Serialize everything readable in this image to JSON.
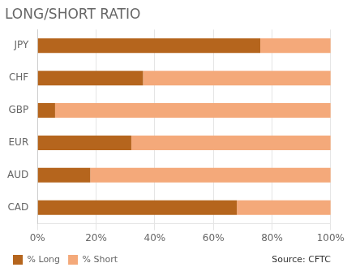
{
  "chart_data": {
    "type": "bar",
    "orientation": "horizontal",
    "stacked": true,
    "title": "LONG/SHORT RATIO",
    "categories": [
      "JPY",
      "CHF",
      "GBP",
      "EUR",
      "AUD",
      "CAD"
    ],
    "series": [
      {
        "name": "% Long",
        "color": "#b5651d",
        "values": [
          76,
          36,
          6,
          32,
          18,
          68
        ]
      },
      {
        "name": "% Short",
        "color": "#f4a97a",
        "values": [
          24,
          64,
          94,
          68,
          82,
          32
        ]
      }
    ],
    "xlim": [
      0,
      100
    ],
    "xticks": [
      {
        "value": 0,
        "label": "0%"
      },
      {
        "value": 20,
        "label": "20%"
      },
      {
        "value": 40,
        "label": "40%"
      },
      {
        "value": 60,
        "label": "60%"
      },
      {
        "value": 80,
        "label": "80%"
      },
      {
        "value": 100,
        "label": "100%"
      }
    ],
    "grid": true,
    "legend": "bottom",
    "annotations": [
      "Source: CFTC"
    ]
  }
}
